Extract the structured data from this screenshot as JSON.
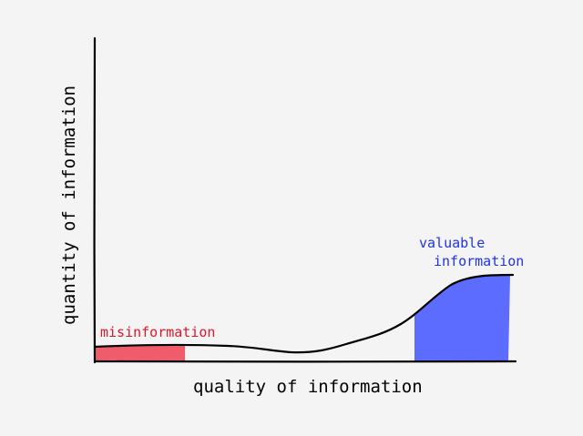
{
  "axes": {
    "x_label": "quality of information",
    "y_label": "quantity of information"
  },
  "regions": {
    "misinformation": {
      "label": "misinformation",
      "color": "#ef5d6b",
      "label_color": "#e0152b"
    },
    "valuable": {
      "label_line1": "valuable",
      "label_line2": "information",
      "color": "#5b6cff",
      "label_color": "#1f33e6"
    }
  },
  "colors": {
    "ink": "#000000",
    "background": "#f4f4f4"
  }
}
